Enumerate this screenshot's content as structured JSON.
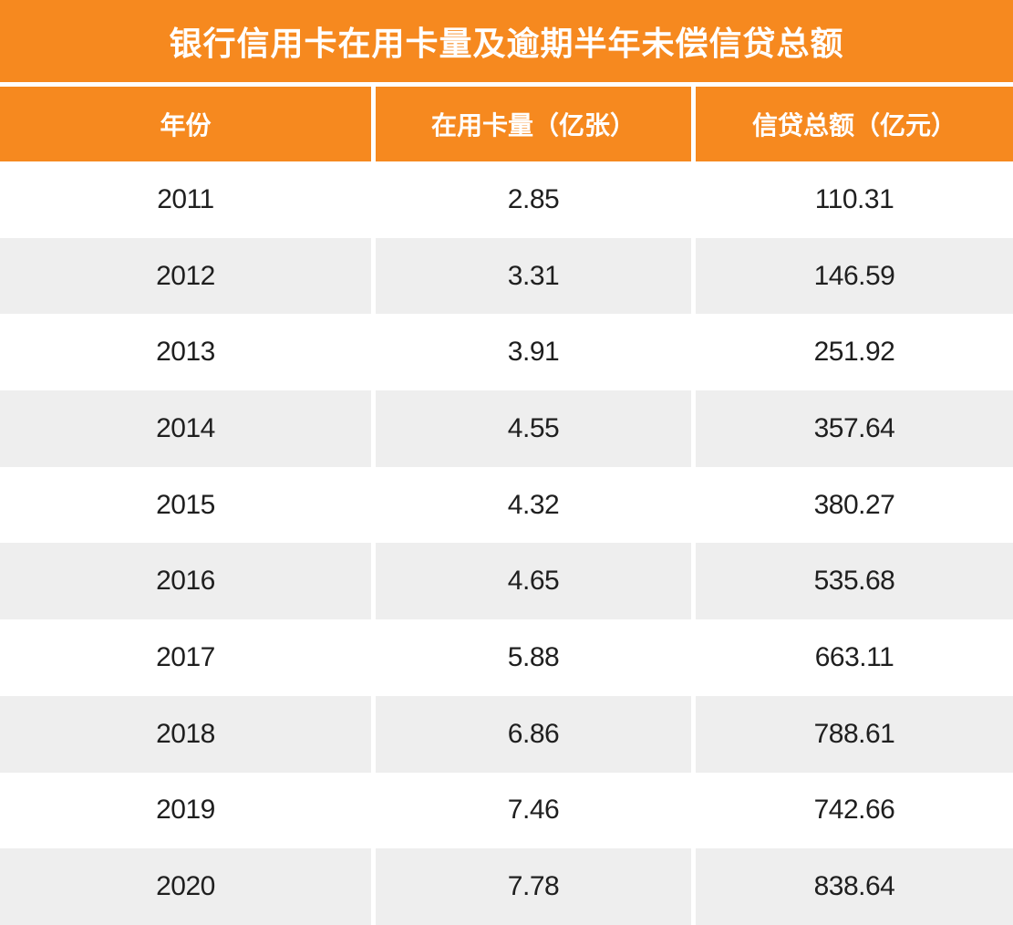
{
  "title": "银行信用卡在用卡量及逾期半年未偿信贷总额",
  "colors": {
    "accent_orange": "#F6891F",
    "row_alt_gray": "#EEEEEE",
    "header_text": "#FFFFFF",
    "body_text": "#1F1F1F"
  },
  "table": {
    "columns": [
      "年份",
      "在用卡量（亿张）",
      "信贷总额（亿元）"
    ],
    "rows": [
      {
        "year": "2011",
        "cards": "2.85",
        "credit": "110.31"
      },
      {
        "year": "2012",
        "cards": "3.31",
        "credit": "146.59"
      },
      {
        "year": "2013",
        "cards": "3.91",
        "credit": "251.92"
      },
      {
        "year": "2014",
        "cards": "4.55",
        "credit": "357.64"
      },
      {
        "year": "2015",
        "cards": "4.32",
        "credit": "380.27"
      },
      {
        "year": "2016",
        "cards": "4.65",
        "credit": "535.68"
      },
      {
        "year": "2017",
        "cards": "5.88",
        "credit": "663.11"
      },
      {
        "year": "2018",
        "cards": "6.86",
        "credit": "788.61"
      },
      {
        "year": "2019",
        "cards": "7.46",
        "credit": "742.66"
      },
      {
        "year": "2020",
        "cards": "7.78",
        "credit": "838.64"
      }
    ]
  },
  "chart_data": {
    "type": "table",
    "title": "银行信用卡在用卡量及逾期半年未偿信贷总额",
    "columns": [
      "年份",
      "在用卡量（亿张）",
      "信贷总额（亿元）"
    ],
    "years": [
      2011,
      2012,
      2013,
      2014,
      2015,
      2016,
      2017,
      2018,
      2019,
      2020
    ],
    "cards_in_use_yi_zhang": [
      2.85,
      3.31,
      3.91,
      4.55,
      4.32,
      4.65,
      5.88,
      6.86,
      7.46,
      7.78
    ],
    "overdue_credit_yi_yuan": [
      110.31,
      146.59,
      251.92,
      357.64,
      380.27,
      535.68,
      663.11,
      788.61,
      742.66,
      838.64
    ]
  }
}
